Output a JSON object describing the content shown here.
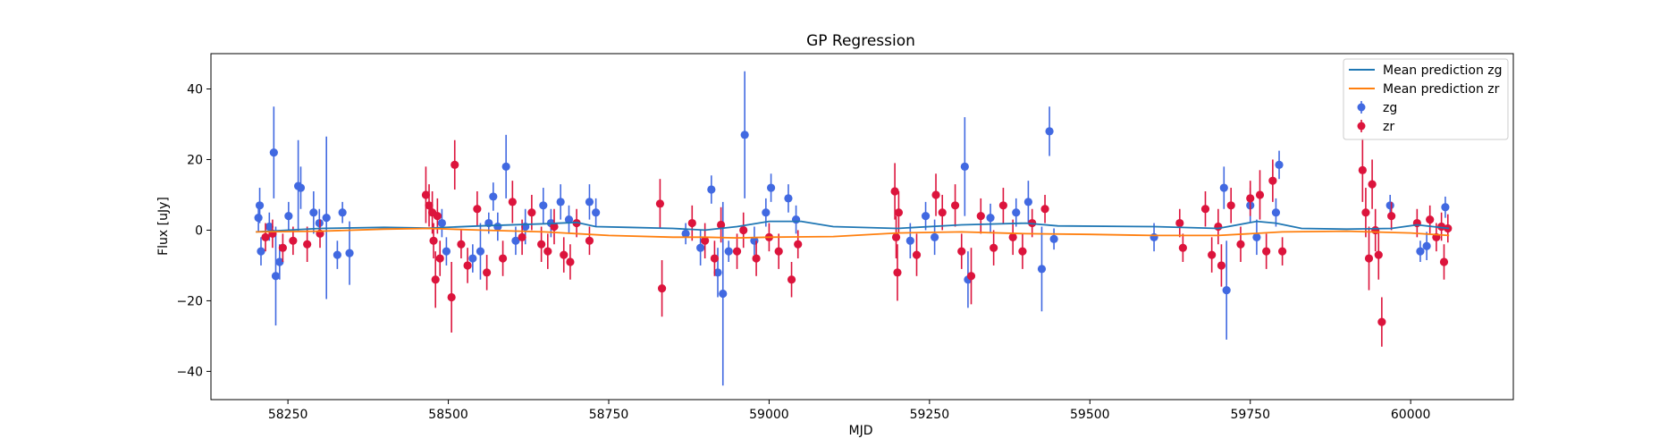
{
  "chart_data": {
    "type": "scatter",
    "title": "GP Regression",
    "xlabel": "MJD",
    "ylabel": "Flux [uJy]",
    "xlim": [
      58130,
      60160
    ],
    "ylim": [
      -48,
      50
    ],
    "xticks": [
      58250,
      58500,
      58750,
      59000,
      59250,
      59500,
      59750,
      60000
    ],
    "yticks": [
      -40,
      -20,
      0,
      20,
      40
    ],
    "grid": false,
    "legend_position": "top-right",
    "colors": {
      "zg_line": "#1f77b4",
      "zr_line": "#ff7f0e",
      "zg_points": "#4169e1",
      "zr_points": "#dc143c"
    },
    "series": [
      {
        "name": "Mean prediction zg",
        "kind": "line",
        "x": [
          58200,
          58300,
          58400,
          58470,
          58550,
          58650,
          58700,
          58730,
          58780,
          58850,
          58900,
          58950,
          59000,
          59050,
          59100,
          59200,
          59300,
          59400,
          59450,
          59600,
          59700,
          59760,
          59790,
          59830,
          59900,
          59970,
          60010,
          60060
        ],
        "y": [
          -0.5,
          0.5,
          0.8,
          0.6,
          1.2,
          1.8,
          2.2,
          1.0,
          0.8,
          0.5,
          0.0,
          1.0,
          2.5,
          2.5,
          1.0,
          0.5,
          1.5,
          2.0,
          1.2,
          1.0,
          0.5,
          2.5,
          2.0,
          0.5,
          0.3,
          0.5,
          1.5,
          0.5
        ]
      },
      {
        "name": "Mean prediction zr",
        "kind": "line",
        "x": [
          58200,
          58300,
          58400,
          58470,
          58550,
          58650,
          58750,
          58850,
          58900,
          58950,
          59000,
          59100,
          59200,
          59300,
          59400,
          59500,
          59600,
          59700,
          59800,
          59900,
          60000,
          60060
        ],
        "y": [
          -0.5,
          -0.3,
          0.3,
          0.5,
          0.0,
          -0.5,
          -1.5,
          -2.0,
          -2.0,
          -2.2,
          -2.0,
          -1.8,
          -0.8,
          -0.5,
          -1.0,
          -1.2,
          -1.5,
          -1.5,
          -0.5,
          -0.3,
          -0.8,
          -1.5
        ]
      },
      {
        "name": "zg",
        "kind": "errorbar",
        "points": [
          [
            58204,
            3.5,
            4
          ],
          [
            58206,
            7.0,
            5
          ],
          [
            58208,
            -6.0,
            4
          ],
          [
            58221,
            1.0,
            4
          ],
          [
            58228,
            22.0,
            13
          ],
          [
            58231,
            -13.0,
            14
          ],
          [
            58237,
            -9.0,
            5
          ],
          [
            58251,
            4.0,
            4
          ],
          [
            58266,
            12.5,
            13
          ],
          [
            58270,
            12.0,
            6
          ],
          [
            58290,
            5.0,
            6
          ],
          [
            58299,
            2.0,
            4
          ],
          [
            58310,
            3.5,
            23
          ],
          [
            58327,
            -7.0,
            4
          ],
          [
            58335,
            5.0,
            3
          ],
          [
            58346,
            -6.5,
            9
          ],
          [
            58490,
            2.0,
            4
          ],
          [
            58497,
            -6.0,
            4
          ],
          [
            58538,
            -8.0,
            4
          ],
          [
            58550,
            -6.0,
            8
          ],
          [
            58563,
            2.0,
            3
          ],
          [
            58570,
            9.5,
            4
          ],
          [
            58577,
            1.0,
            4
          ],
          [
            58590,
            18.0,
            9
          ],
          [
            58605,
            -3.0,
            4
          ],
          [
            58620,
            1.0,
            5
          ],
          [
            58648,
            7.0,
            5
          ],
          [
            58660,
            2.0,
            4
          ],
          [
            58675,
            8.0,
            5
          ],
          [
            58688,
            3.0,
            4
          ],
          [
            58720,
            8.0,
            5
          ],
          [
            58730,
            5.0,
            4
          ],
          [
            58870,
            -1.0,
            3
          ],
          [
            58893,
            -5.0,
            5
          ],
          [
            58910,
            11.5,
            4
          ],
          [
            58920,
            -12.0,
            7
          ],
          [
            58928,
            -18.0,
            26
          ],
          [
            58937,
            -6.0,
            3
          ],
          [
            58962,
            27.0,
            18
          ],
          [
            58977,
            -3.0,
            4
          ],
          [
            58995,
            5.0,
            4
          ],
          [
            59003,
            12.0,
            4
          ],
          [
            59030,
            9.0,
            4
          ],
          [
            59042,
            3.0,
            4
          ],
          [
            59220,
            -3.0,
            5
          ],
          [
            59244,
            4.0,
            4
          ],
          [
            59258,
            -2.0,
            5
          ],
          [
            59305,
            18.0,
            14
          ],
          [
            59310,
            -14.0,
            8
          ],
          [
            59345,
            3.5,
            4
          ],
          [
            59385,
            5.0,
            4
          ],
          [
            59404,
            8.0,
            6
          ],
          [
            59425,
            -11.0,
            12
          ],
          [
            59437,
            28.0,
            7
          ],
          [
            59444,
            -2.5,
            3
          ],
          [
            59600,
            -2.0,
            4
          ],
          [
            59709,
            12.0,
            6
          ],
          [
            59713,
            -17.0,
            14
          ],
          [
            59750,
            7.0,
            5
          ],
          [
            59760,
            -2.0,
            5
          ],
          [
            59790,
            5.0,
            4
          ],
          [
            59795,
            18.5,
            4
          ],
          [
            59968,
            7.0,
            3
          ],
          [
            60015,
            -6.0,
            3
          ],
          [
            60025,
            -4.5,
            4
          ],
          [
            60054,
            6.5,
            3
          ]
        ]
      },
      {
        "name": "zr",
        "kind": "errorbar",
        "points": [
          [
            58215,
            -2.0,
            4
          ],
          [
            58226,
            -1.0,
            4
          ],
          [
            58242,
            -5.0,
            4
          ],
          [
            58258,
            -3.0,
            4
          ],
          [
            58280,
            -4.0,
            5
          ],
          [
            58300,
            -1.0,
            4
          ],
          [
            58465,
            10.0,
            8
          ],
          [
            58470,
            7.0,
            6
          ],
          [
            58475,
            5.0,
            6
          ],
          [
            58477,
            -3.0,
            5
          ],
          [
            58480,
            -14.0,
            8
          ],
          [
            58483,
            4.0,
            5
          ],
          [
            58487,
            -8.0,
            5
          ],
          [
            58505,
            -19.0,
            10
          ],
          [
            58510,
            18.5,
            7
          ],
          [
            58520,
            -4.0,
            4
          ],
          [
            58530,
            -10.0,
            5
          ],
          [
            58545,
            6.0,
            5
          ],
          [
            58560,
            -12.0,
            5
          ],
          [
            58585,
            -8.0,
            5
          ],
          [
            58600,
            8.0,
            6
          ],
          [
            58615,
            -2.0,
            5
          ],
          [
            58630,
            5.0,
            5
          ],
          [
            58645,
            -4.0,
            5
          ],
          [
            58655,
            -6.0,
            5
          ],
          [
            58665,
            1.0,
            5
          ],
          [
            58680,
            -7.0,
            5
          ],
          [
            58690,
            -9.0,
            5
          ],
          [
            58700,
            2.0,
            4
          ],
          [
            58720,
            -3.0,
            4
          ],
          [
            58830,
            7.5,
            7
          ],
          [
            58833,
            -16.5,
            8
          ],
          [
            58880,
            2.0,
            5
          ],
          [
            58900,
            -3.0,
            5
          ],
          [
            58915,
            -8.0,
            5
          ],
          [
            58925,
            1.5,
            5
          ],
          [
            58950,
            -6.0,
            5
          ],
          [
            58960,
            0.0,
            5
          ],
          [
            58980,
            -8.0,
            5
          ],
          [
            59000,
            -2.0,
            4
          ],
          [
            59015,
            -6.0,
            5
          ],
          [
            59035,
            -14.0,
            5
          ],
          [
            59045,
            -4.0,
            4
          ],
          [
            59196,
            11.0,
            8
          ],
          [
            59198,
            -2.0,
            6
          ],
          [
            59200,
            -12.0,
            8
          ],
          [
            59202,
            5.0,
            6
          ],
          [
            59230,
            -7.0,
            6
          ],
          [
            59260,
            10.0,
            6
          ],
          [
            59270,
            5.0,
            5
          ],
          [
            59290,
            7.0,
            6
          ],
          [
            59300,
            -6.0,
            5
          ],
          [
            59315,
            -13.0,
            8
          ],
          [
            59330,
            4.0,
            5
          ],
          [
            59350,
            -5.0,
            5
          ],
          [
            59365,
            7.0,
            5
          ],
          [
            59380,
            -2.0,
            5
          ],
          [
            59395,
            -6.0,
            5
          ],
          [
            59410,
            2.0,
            4
          ],
          [
            59430,
            6.0,
            4
          ],
          [
            59640,
            2.0,
            4
          ],
          [
            59645,
            -5.0,
            4
          ],
          [
            59680,
            6.0,
            5
          ],
          [
            59690,
            -7.0,
            5
          ],
          [
            59700,
            1.0,
            5
          ],
          [
            59705,
            -10.0,
            6
          ],
          [
            59720,
            7.0,
            5
          ],
          [
            59735,
            -4.0,
            5
          ],
          [
            59750,
            9.0,
            5
          ],
          [
            59765,
            10.0,
            7
          ],
          [
            59775,
            -6.0,
            5
          ],
          [
            59785,
            14.0,
            6
          ],
          [
            59800,
            -6.0,
            4
          ],
          [
            59925,
            17.0,
            9
          ],
          [
            59930,
            5.0,
            7
          ],
          [
            59935,
            -8.0,
            9
          ],
          [
            59940,
            13.0,
            7
          ],
          [
            59945,
            0.0,
            6
          ],
          [
            59950,
            -7.0,
            7
          ],
          [
            59955,
            -26.0,
            7
          ],
          [
            59970,
            4.0,
            4
          ],
          [
            60010,
            2.0,
            4
          ],
          [
            60030,
            3.0,
            4
          ],
          [
            60040,
            -2.0,
            4
          ],
          [
            60048,
            1.0,
            4
          ],
          [
            60052,
            -9.0,
            5
          ],
          [
            60058,
            0.5,
            4
          ]
        ]
      }
    ]
  }
}
